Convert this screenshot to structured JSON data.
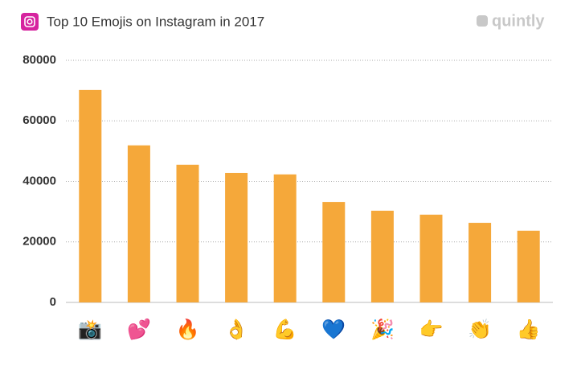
{
  "chart_data": {
    "type": "bar",
    "title": "Top 10 Emojis on Instagram in 2017",
    "brand": "quintly",
    "categories": [
      "📸",
      "💕",
      "🔥",
      "👌",
      "💪",
      "💙",
      "🎉",
      "👉",
      "👏",
      "👍"
    ],
    "values": [
      70200,
      51900,
      45500,
      42800,
      42300,
      33200,
      30300,
      29000,
      26300,
      23700
    ],
    "color": "#f5a83a",
    "ylim": [
      0,
      80000
    ],
    "yticks": [
      0,
      20000,
      40000,
      60000,
      80000
    ],
    "grid": true
  }
}
